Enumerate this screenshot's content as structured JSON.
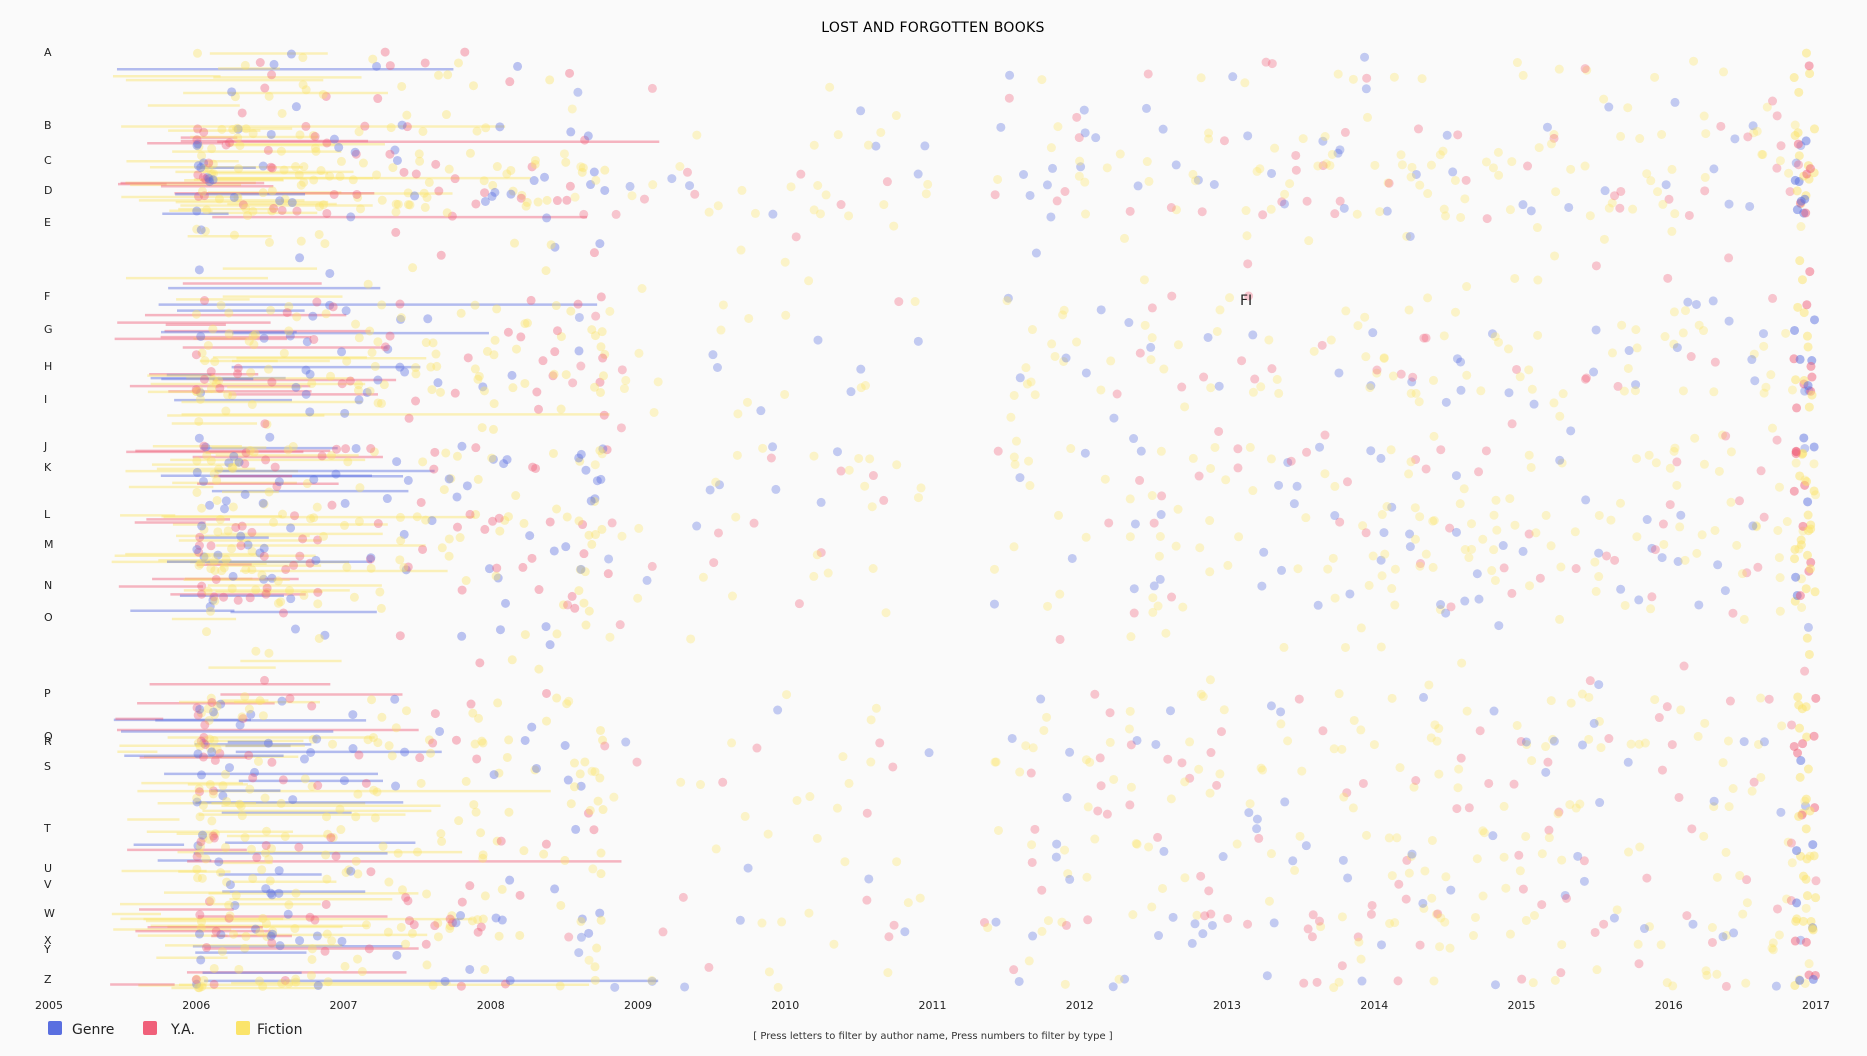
{
  "chart_data": {
    "type": "scatter",
    "title": "LOST AND FORGOTTEN BOOKS",
    "xlabel": "",
    "ylabel": "",
    "x_ticks": [
      "2005",
      "2006",
      "2007",
      "2008",
      "2009",
      "2010",
      "2011",
      "2012",
      "2013",
      "2014",
      "2015",
      "2016",
      "2017"
    ],
    "xlim": [
      2005,
      2017
    ],
    "y_categories": [
      "A",
      "B",
      "C",
      "D",
      "E",
      "F",
      "G",
      "H",
      "I",
      "J",
      "K",
      "L",
      "M",
      "N",
      "O",
      "P",
      "Q",
      "R",
      "S",
      "T",
      "U",
      "V",
      "W",
      "X",
      "Y",
      "Z"
    ],
    "series": [
      {
        "name": "Genre",
        "color": "#5a6fe0"
      },
      {
        "name": "Y.A.",
        "color": "#f0607a"
      },
      {
        "name": "Fiction",
        "color": "#fbe46a"
      }
    ],
    "legend_position": "bottom-left",
    "annotation": "FI",
    "grid": false,
    "density_by_letter": {
      "A": 0.6,
      "B": 0.8,
      "C": 1.0,
      "D": 1.0,
      "E": 0.35,
      "F": 0.5,
      "G": 0.8,
      "H": 1.0,
      "I": 0.35,
      "J": 0.7,
      "K": 0.8,
      "L": 0.8,
      "M": 1.0,
      "N": 0.6,
      "O": 0.3,
      "P": 0.7,
      "Q": 0.3,
      "R": 0.5,
      "S": 1.0,
      "T": 0.8,
      "U": 0.3,
      "V": 0.4,
      "W": 0.9,
      "X": 0.2,
      "Y": 0.25,
      "Z": 0.4
    }
  },
  "footer": {
    "hint": "[ Press letters to filter by author name, Press numbers to filter by type ]"
  }
}
